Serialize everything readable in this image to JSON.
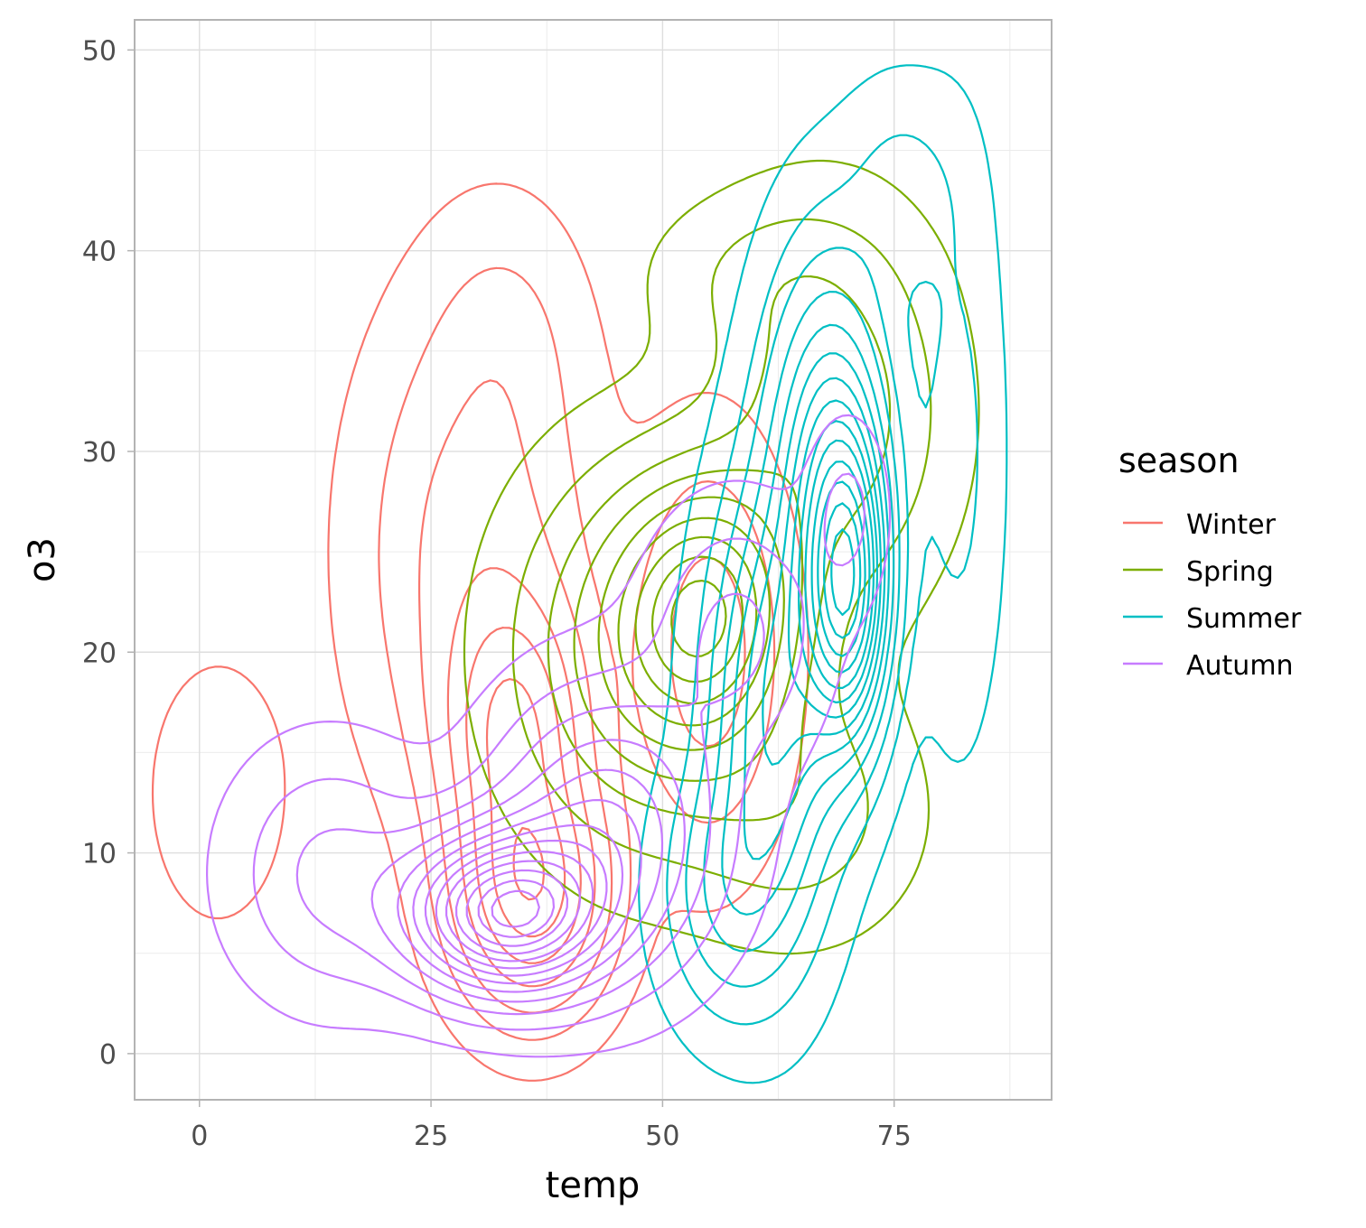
{
  "chart_data": {
    "type": "contour",
    "title": "",
    "xlabel": "temp",
    "ylabel": "o3",
    "xlim": [
      -7,
      92
    ],
    "ylim": [
      -2.3,
      51.5
    ],
    "x_ticks": [
      0,
      25,
      50,
      75
    ],
    "y_ticks": [
      0,
      10,
      20,
      30,
      40,
      50
    ],
    "x_tick_labels": [
      "0",
      "25",
      "50",
      "75"
    ],
    "y_tick_labels": [
      "0",
      "10",
      "20",
      "30",
      "40",
      "50"
    ],
    "grid": true,
    "legend": {
      "title": "season",
      "placement": "right"
    },
    "series": [
      {
        "name": "Winter",
        "color": "#F8766D",
        "peaks": [
          {
            "x": 36,
            "y": 8,
            "sx": 5.0,
            "sy": 3.6,
            "w": 1.0
          },
          {
            "x": 34,
            "y": 16,
            "sx": 4.8,
            "sy": 4.2,
            "w": 0.8
          },
          {
            "x": 30,
            "y": 25,
            "sx": 7.5,
            "sy": 7.5,
            "w": 0.35
          },
          {
            "x": 55,
            "y": 20,
            "sx": 5.0,
            "sy": 6.0,
            "w": 0.35
          },
          {
            "x": 2,
            "y": 13,
            "sx": 4.5,
            "sy": 4.0,
            "w": 0.12
          },
          {
            "x": 33,
            "y": 36,
            "sx": 5.0,
            "sy": 4.0,
            "w": 0.1
          }
        ],
        "levels": [
          0.03,
          0.11,
          0.22,
          0.38,
          0.55,
          0.75,
          0.95
        ]
      },
      {
        "name": "Spring",
        "color": "#7CAE00",
        "peaks": [
          {
            "x": 55,
            "y": 22,
            "sx": 6.0,
            "sy": 4.0,
            "w": 1.0
          },
          {
            "x": 48,
            "y": 20,
            "sx": 9.0,
            "sy": 6.0,
            "w": 0.6
          },
          {
            "x": 68,
            "y": 32,
            "sx": 8.0,
            "sy": 6.0,
            "w": 0.45
          },
          {
            "x": 65,
            "y": 12,
            "sx": 8.0,
            "sy": 4.0,
            "w": 0.25
          },
          {
            "x": 60,
            "y": 39,
            "sx": 8.0,
            "sy": 2.5,
            "w": 0.12
          }
        ],
        "levels": [
          0.04,
          0.12,
          0.22,
          0.32,
          0.44,
          0.56,
          0.68,
          0.8,
          0.92
        ]
      },
      {
        "name": "Summer",
        "color": "#00BFC4",
        "peaks": [
          {
            "x": 70,
            "y": 23,
            "sx": 3.0,
            "sy": 5.0,
            "w": 1.0
          },
          {
            "x": 68,
            "y": 30,
            "sx": 4.5,
            "sy": 6.5,
            "w": 0.55
          },
          {
            "x": 62,
            "y": 17,
            "sx": 4.5,
            "sy": 7.0,
            "w": 0.55
          },
          {
            "x": 57,
            "y": 8,
            "sx": 4.5,
            "sy": 4.0,
            "w": 0.25
          },
          {
            "x": 76,
            "y": 43,
            "sx": 4.0,
            "sy": 3.5,
            "w": 0.12
          },
          {
            "x": 82,
            "y": 30,
            "sx": 3.0,
            "sy": 9.0,
            "w": 0.12
          }
        ],
        "levels": [
          0.02,
          0.07,
          0.13,
          0.2,
          0.27,
          0.34,
          0.41,
          0.48,
          0.55,
          0.62,
          0.7,
          0.78,
          0.86,
          0.94
        ]
      },
      {
        "name": "Autumn",
        "color": "#C77CFF",
        "peaks": [
          {
            "x": 33,
            "y": 7,
            "sx": 7.0,
            "sy": 2.6,
            "w": 1.0
          },
          {
            "x": 44,
            "y": 11,
            "sx": 8.0,
            "sy": 4.5,
            "w": 0.45
          },
          {
            "x": 14,
            "y": 9,
            "sx": 7.0,
            "sy": 4.0,
            "w": 0.2
          },
          {
            "x": 58,
            "y": 21,
            "sx": 6.0,
            "sy": 4.0,
            "w": 0.2
          },
          {
            "x": 70,
            "y": 27,
            "sx": 2.8,
            "sy": 3.0,
            "w": 0.12
          }
        ],
        "levels": [
          0.03,
          0.09,
          0.16,
          0.24,
          0.32,
          0.4,
          0.48,
          0.56,
          0.64,
          0.72,
          0.8,
          0.88,
          0.95
        ]
      }
    ]
  }
}
